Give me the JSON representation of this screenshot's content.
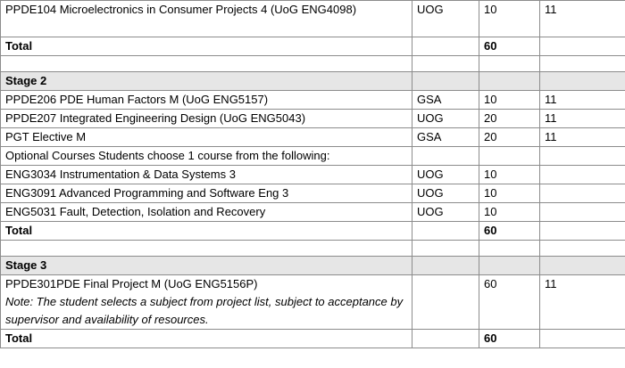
{
  "rows": [
    {
      "course": "PPDE104 Microelectronics in Consumer Projects 4 (UoG ENG4098)",
      "school": "UOG",
      "credits": "10",
      "level": "11"
    },
    {
      "total_label": "Total",
      "total_value": "60"
    },
    {
      "stage_label": "Stage 2"
    },
    {
      "course": "PPDE206 PDE Human Factors M (UoG ENG5157)",
      "school": "GSA",
      "credits": "10",
      "level": "11"
    },
    {
      "course": "PPDE207 Integrated Engineering Design (UoG ENG5043)",
      "school": "UOG",
      "credits": "20",
      "level": "11"
    },
    {
      "course": "PGT Elective M",
      "school": "GSA",
      "credits": "20",
      "level": "11"
    },
    {
      "course": "Optional Courses Students choose 1 course from the following:"
    },
    {
      "course": "ENG3034 Instrumentation & Data Systems 3",
      "school": "UOG",
      "credits": "10"
    },
    {
      "course": "ENG3091 Advanced Programming and Software Eng 3",
      "school": "UOG",
      "credits": "10"
    },
    {
      "course": "ENG5031 Fault, Detection, Isolation and Recovery",
      "school": "UOG",
      "credits": "10"
    },
    {
      "total_label": "Total",
      "total_value": "60"
    },
    {
      "stage_label": "Stage 3"
    },
    {
      "course": "PPDE301PDE Final Project M (UoG ENG5156P)",
      "note": "Note: The student selects a subject from project list, subject to acceptance by supervisor and availability of resources.",
      "credits": "60",
      "level": "11"
    },
    {
      "total_label": "Total",
      "total_value": "60"
    }
  ]
}
